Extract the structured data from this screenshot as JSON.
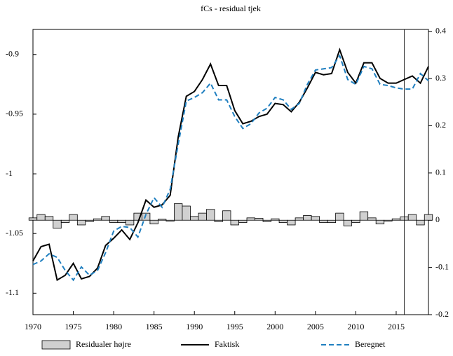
{
  "chart_data": {
    "type": "line",
    "title": "fCs - residual tjek",
    "x": [
      1970,
      1971,
      1972,
      1973,
      1974,
      1975,
      1976,
      1977,
      1978,
      1979,
      1980,
      1981,
      1982,
      1983,
      1984,
      1985,
      1986,
      1987,
      1988,
      1989,
      1990,
      1991,
      1992,
      1993,
      1994,
      1995,
      1996,
      1997,
      1998,
      1999,
      2000,
      2001,
      2002,
      2003,
      2004,
      2005,
      2006,
      2007,
      2008,
      2009,
      2010,
      2011,
      2012,
      2013,
      2014,
      2015,
      2016,
      2017,
      2018,
      2019
    ],
    "series": [
      {
        "name": "Residualer højre",
        "type": "bar",
        "axis": "y2",
        "color": "#d0d0d0",
        "values": [
          0.005,
          0.012,
          0.008,
          -0.017,
          -0.005,
          0.012,
          -0.01,
          -0.003,
          0.003,
          0.008,
          -0.005,
          -0.005,
          -0.01,
          0.015,
          0.015,
          -0.008,
          0.002,
          -0.002,
          0.035,
          0.03,
          0.008,
          0.015,
          0.023,
          -0.003,
          0.02,
          -0.01,
          -0.005,
          0.005,
          0.004,
          -0.003,
          0.003,
          -0.005,
          -0.01,
          0.005,
          0.01,
          0.008,
          -0.005,
          -0.005,
          0.015,
          -0.012,
          -0.005,
          0.018,
          0.005,
          -0.008,
          -0.002,
          0.003,
          0.007,
          0.012,
          -0.01,
          0.012
        ]
      },
      {
        "name": "Faktisk",
        "type": "line",
        "color": "#000000",
        "dash": false,
        "values": [
          -1.073,
          -1.061,
          -1.059,
          -1.089,
          -1.085,
          -1.075,
          -1.088,
          -1.086,
          -1.079,
          -1.06,
          -1.054,
          -1.047,
          -1.055,
          -1.041,
          -1.022,
          -1.028,
          -1.026,
          -1.018,
          -0.969,
          -0.935,
          -0.931,
          -0.921,
          -0.908,
          -0.926,
          -0.926,
          -0.947,
          -0.958,
          -0.956,
          -0.952,
          -0.95,
          -0.941,
          -0.942,
          -0.948,
          -0.94,
          -0.928,
          -0.915,
          -0.917,
          -0.916,
          -0.896,
          -0.915,
          -0.924,
          -0.907,
          -0.907,
          -0.92,
          -0.924,
          -0.924,
          -0.921,
          -0.918,
          -0.924,
          -0.91
        ]
      },
      {
        "name": "Beregnet",
        "type": "line",
        "color": "#1f7fc0",
        "dash": true,
        "values": [
          -1.076,
          -1.073,
          -1.067,
          -1.07,
          -1.081,
          -1.089,
          -1.078,
          -1.085,
          -1.081,
          -1.066,
          -1.048,
          -1.044,
          -1.045,
          -1.053,
          -1.034,
          -1.02,
          -1.028,
          -1.013,
          -0.975,
          -0.939,
          -0.936,
          -0.932,
          -0.924,
          -0.938,
          -0.938,
          -0.952,
          -0.962,
          -0.958,
          -0.949,
          -0.945,
          -0.936,
          -0.938,
          -0.946,
          -0.941,
          -0.925,
          -0.913,
          -0.912,
          -0.911,
          -0.901,
          -0.921,
          -0.925,
          -0.91,
          -0.912,
          -0.925,
          -0.926,
          -0.928,
          -0.929,
          -0.929,
          -0.916,
          -0.922
        ]
      }
    ],
    "xlim": [
      1970,
      2019
    ],
    "xticks": [
      1970,
      1975,
      1980,
      1985,
      1990,
      1995,
      2000,
      2005,
      2010,
      2015
    ],
    "ylim": [
      -1.118,
      -0.879
    ],
    "yticks": [
      -1.1,
      -1.05,
      -1,
      -0.95,
      -0.9
    ],
    "y2lim": [
      -0.2,
      0.404
    ],
    "y2ticks": [
      -0.2,
      -0.1,
      0,
      0.1,
      0.2,
      0.3,
      0.4
    ],
    "vline": 2016
  }
}
